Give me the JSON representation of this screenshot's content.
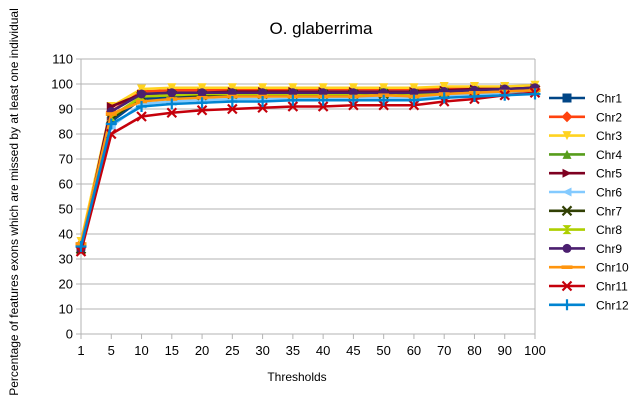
{
  "chart_data": {
    "type": "line",
    "title": "O. glaberrima",
    "xlabel": "Thresholds",
    "ylabel": "Percentage of features exons which are missed by at least one individual",
    "categories": [
      "1",
      "5",
      "10",
      "15",
      "20",
      "25",
      "30",
      "35",
      "40",
      "45",
      "50",
      "60",
      "70",
      "80",
      "90",
      "100"
    ],
    "ylim": [
      0,
      110
    ],
    "yticks": [
      0,
      10,
      20,
      30,
      40,
      50,
      60,
      70,
      80,
      90,
      100,
      110
    ],
    "grid": true,
    "legend_position": "right",
    "series": [
      {
        "name": "Chr1",
        "color": "#004586",
        "marker": "square",
        "values": [
          35,
          85,
          94,
          94.5,
          95,
          95.5,
          95.5,
          95.5,
          95.5,
          95.5,
          96,
          95.5,
          96.5,
          97,
          97.5,
          98
        ]
      },
      {
        "name": "Chr2",
        "color": "#ff420e",
        "marker": "diamond",
        "values": [
          36,
          89,
          97,
          97.5,
          97.5,
          97.5,
          97.5,
          98,
          98,
          98,
          98,
          98,
          98,
          98.5,
          98.5,
          99
        ]
      },
      {
        "name": "Chr3",
        "color": "#ffd320",
        "marker": "triangle-down",
        "values": [
          37,
          91,
          98,
          98.5,
          98.5,
          98.5,
          98.5,
          98.5,
          98.5,
          98.5,
          98.5,
          98.5,
          99,
          99,
          99,
          99.5
        ]
      },
      {
        "name": "Chr4",
        "color": "#579d1c",
        "marker": "triangle-up",
        "values": [
          35,
          86,
          95,
          95.5,
          96,
          96,
          96,
          96,
          96,
          96,
          96,
          96,
          96.5,
          97,
          97.5,
          98
        ]
      },
      {
        "name": "Chr5",
        "color": "#7e0021",
        "marker": "triangle-right",
        "values": [
          34,
          91,
          96,
          96.5,
          96.5,
          97,
          97,
          97,
          97,
          97,
          97,
          97,
          97.5,
          98,
          98,
          98.5
        ]
      },
      {
        "name": "Chr6",
        "color": "#83caff",
        "marker": "triangle-left",
        "values": [
          35,
          83,
          92,
          93,
          93.5,
          94,
          94,
          94,
          94.5,
          94.5,
          94.5,
          94,
          95.5,
          96,
          96.5,
          97
        ]
      },
      {
        "name": "Chr7",
        "color": "#314004",
        "marker": "x",
        "values": [
          34,
          86,
          95,
          95.5,
          95.5,
          96,
          96,
          96,
          96,
          96,
          96,
          96,
          96.5,
          97,
          97,
          97.5
        ]
      },
      {
        "name": "Chr8",
        "color": "#aecf00",
        "marker": "hourglass",
        "values": [
          35,
          87,
          95,
          95.5,
          96,
          96,
          96,
          96,
          96,
          96,
          96.5,
          96,
          96.5,
          97,
          97.5,
          98
        ]
      },
      {
        "name": "Chr9",
        "color": "#4b1f6f",
        "marker": "circle",
        "values": [
          34,
          89,
          96,
          96.5,
          96.5,
          96.5,
          96.5,
          96.5,
          96.5,
          96.5,
          96.5,
          96.5,
          97,
          97.5,
          98,
          98.5
        ]
      },
      {
        "name": "Chr10",
        "color": "#ff950e",
        "marker": "dash",
        "values": [
          36,
          88,
          93,
          94,
          94.5,
          95,
          95,
          95,
          95,
          95,
          95.5,
          95,
          96,
          96.5,
          97,
          97.5
        ]
      },
      {
        "name": "Chr11",
        "color": "#c5000b",
        "marker": "x",
        "values": [
          33,
          80,
          87,
          88.5,
          89.5,
          90,
          90.5,
          91,
          91,
          91.5,
          91.5,
          91.5,
          93,
          94,
          95.5,
          96.5
        ]
      },
      {
        "name": "Chr12",
        "color": "#0084d1",
        "marker": "plus",
        "values": [
          35,
          84,
          91,
          92,
          92.5,
          93,
          93,
          93.5,
          93.5,
          93.5,
          93.5,
          93.5,
          94.5,
          95,
          95.5,
          96
        ]
      }
    ]
  }
}
